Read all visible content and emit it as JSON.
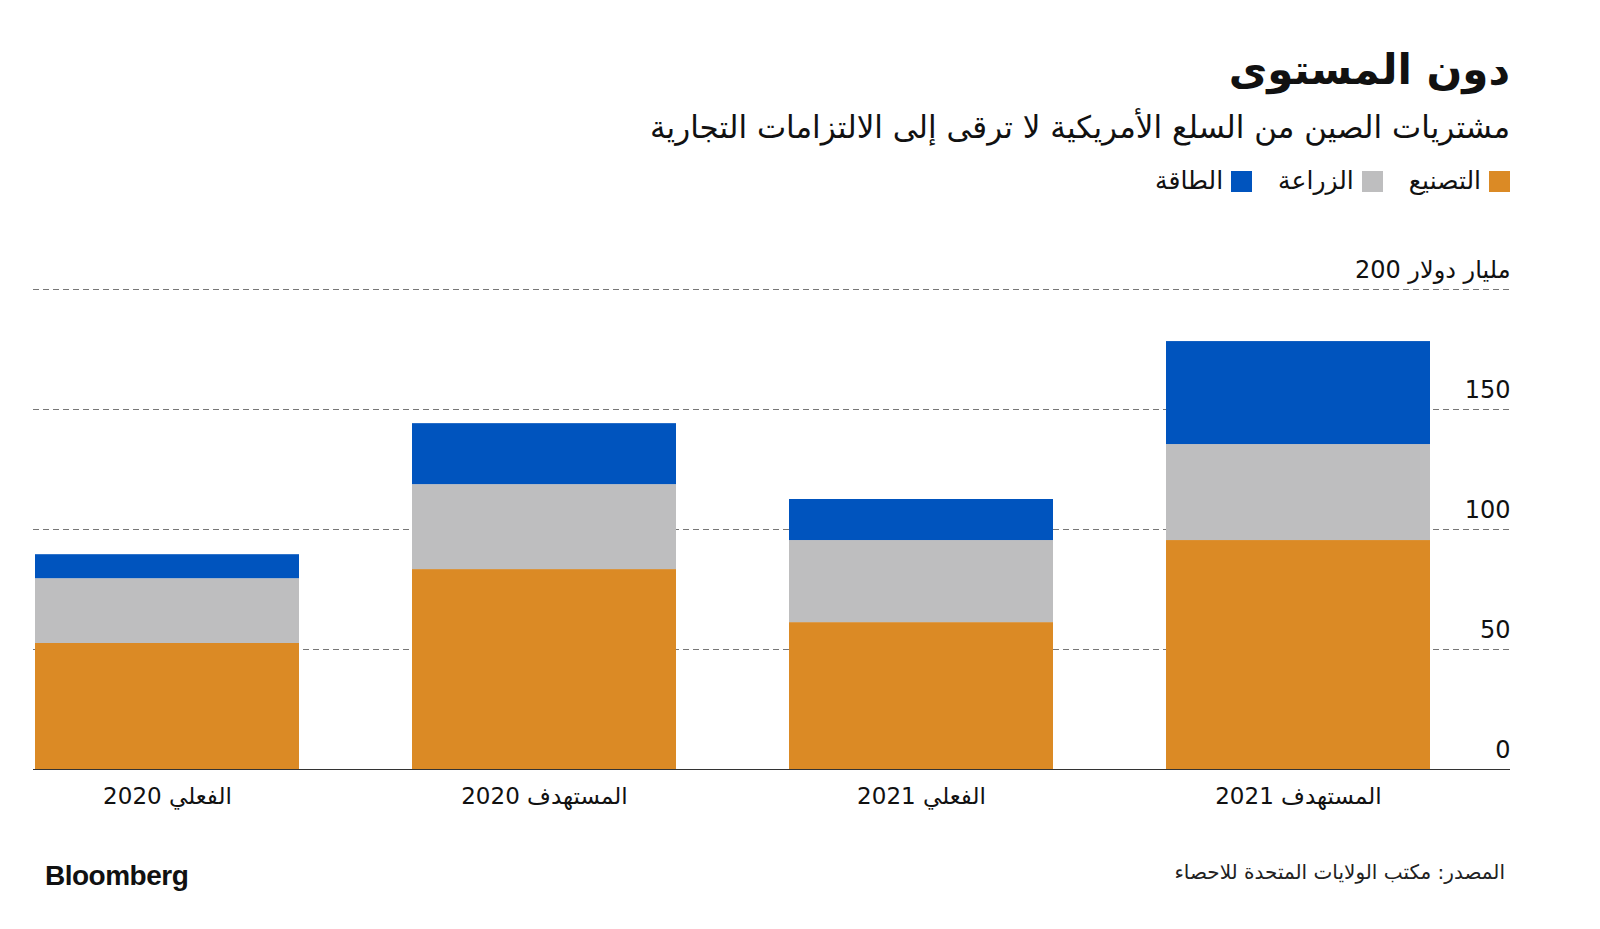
{
  "chart_data": {
    "type": "bar",
    "title": "دون المستوى",
    "subtitle": "مشتريات الصين من السلع الأمريكية لا ترقى إلى الالتزامات التجارية",
    "categories": [
      "الفعلي 2020",
      "المستهدف 2020",
      "الفعلي 2021",
      "المستهدف 2021"
    ],
    "series": [
      {
        "name": "التصنيع",
        "color": "#db8a25",
        "values": [
          52.5,
          83.3,
          61.2,
          95.4
        ]
      },
      {
        "name": "الزراعة",
        "color": "#bebebf",
        "values": [
          27,
          35.4,
          34.2,
          40
        ]
      },
      {
        "name": "الطاقة",
        "color": "#0054be",
        "values": [
          10,
          25.4,
          17.1,
          42.9
        ]
      }
    ],
    "stacked": true,
    "ylim": [
      0,
      200
    ],
    "yticks": [
      0,
      50,
      100,
      150,
      {
        "value": 200,
        "label": "200 مليار دولار"
      }
    ],
    "grid": true,
    "legend": "top-right",
    "source": "المصدر: مكتب الولايات المتحدة للاحصاء",
    "brand": "Bloomberg"
  }
}
